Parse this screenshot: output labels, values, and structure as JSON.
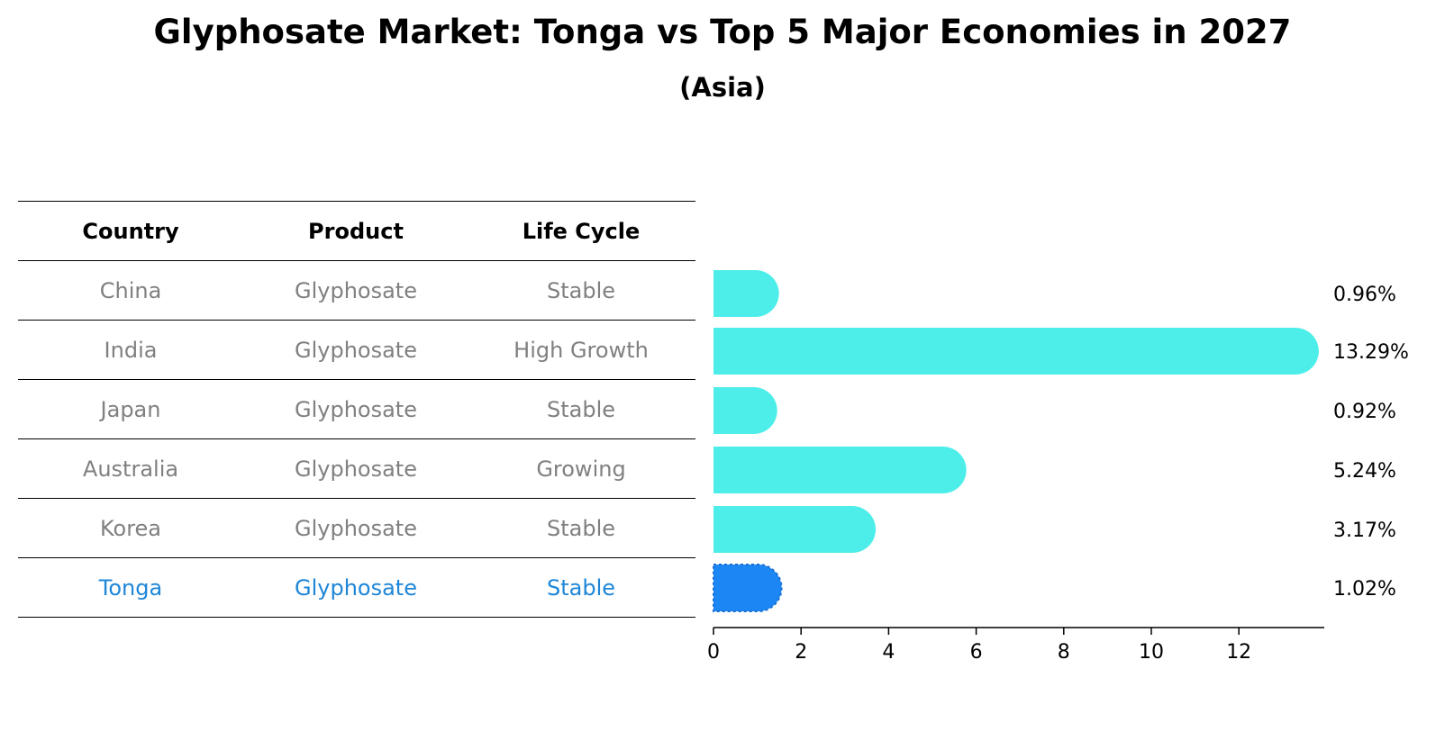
{
  "chart_data": {
    "type": "bar",
    "orientation": "horizontal",
    "title": "Glyphosate Market: Tonga vs Top 5 Major Economies in 2027",
    "subtitle": "(Asia)",
    "table": {
      "headers": [
        "Country",
        "Product",
        "Life Cycle"
      ],
      "rows": [
        [
          "China",
          "Glyphosate",
          "Stable"
        ],
        [
          "India",
          "Glyphosate",
          "High Growth"
        ],
        [
          "Japan",
          "Glyphosate",
          "Stable"
        ],
        [
          "Australia",
          "Glyphosate",
          "Growing"
        ],
        [
          "Korea",
          "Glyphosate",
          "Stable"
        ],
        [
          "Tonga",
          "Glyphosate",
          "Stable"
        ]
      ],
      "highlight_row": 5
    },
    "categories": [
      "China",
      "India",
      "Japan",
      "Australia",
      "Korea",
      "Tonga"
    ],
    "values": [
      0.96,
      13.29,
      0.92,
      5.24,
      3.17,
      1.02
    ],
    "value_labels": [
      "0.96%",
      "13.29%",
      "0.92%",
      "5.24%",
      "3.17%",
      "1.02%"
    ],
    "xlim": [
      0,
      14
    ],
    "xticks": [
      0,
      2,
      4,
      6,
      8,
      10,
      12
    ],
    "xtick_labels": [
      "0",
      "2",
      "4",
      "6",
      "8",
      "10",
      "12"
    ],
    "grid": false,
    "colors": {
      "bar": "#4deeea",
      "highlight_bar": "#1b86f4",
      "highlight_text": "#1e86d8",
      "muted_text": "#808080"
    }
  }
}
